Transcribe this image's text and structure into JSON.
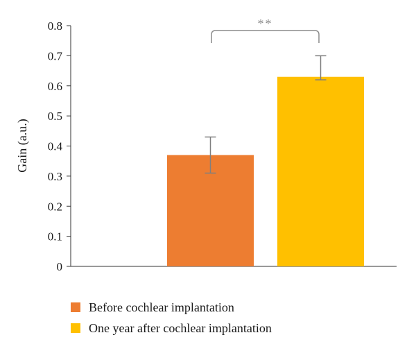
{
  "chart_data": {
    "type": "bar",
    "title": "",
    "xlabel": "",
    "ylabel": "Gain (a.u.)",
    "ylim": [
      0,
      0.8
    ],
    "yticks": [
      "0",
      "0.1",
      "0.2",
      "0.3",
      "0.4",
      "0.5",
      "0.6",
      "0.7",
      "0.8"
    ],
    "grid": false,
    "legend_position": "bottom",
    "series": [
      {
        "name": "Before cochlear implantation",
        "value": 0.37,
        "error_low": 0.31,
        "error_high": 0.43,
        "color": "#ED7D31"
      },
      {
        "name": "One year after cochlear implantation",
        "value": 0.63,
        "error_low": 0.62,
        "error_high": 0.7,
        "color": "#FFC000"
      }
    ],
    "annotation": {
      "text": "**",
      "between": [
        0,
        1
      ]
    }
  }
}
